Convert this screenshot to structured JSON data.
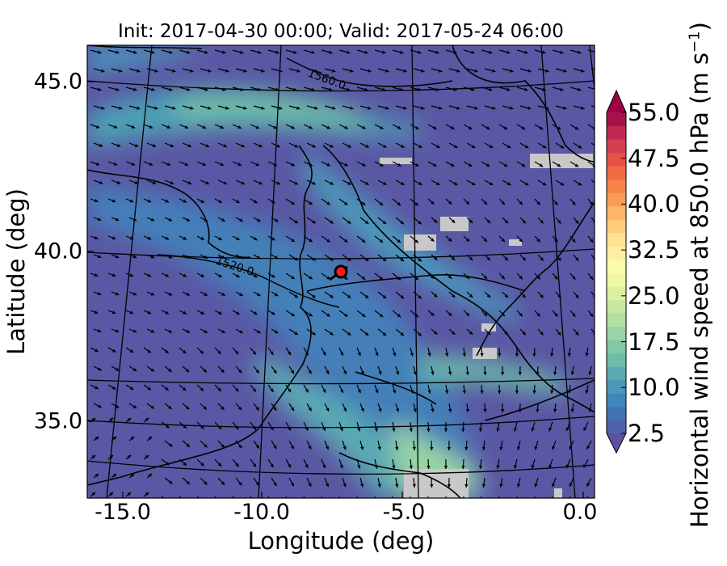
{
  "title": "Init: 2017-04-30 00:00; Valid: 2017-05-24 06:00",
  "map": {
    "x_axis": {
      "label": "Longitude (deg)",
      "ticks": [
        "-15.0",
        "-10.0",
        "-5.0",
        "0.0"
      ],
      "tick_values": [
        -15,
        -10,
        -5,
        0
      ],
      "range": [
        -16.1,
        0.2
      ]
    },
    "y_axis": {
      "label": "Latitude (deg)",
      "ticks": [
        "35.0",
        "40.0",
        "45.0"
      ],
      "tick_values": [
        35,
        40,
        45
      ],
      "range": [
        32.7,
        46.1
      ]
    },
    "contour_labels": [
      "1560.0",
      "1520.0"
    ],
    "marker": {
      "lon": -7.7,
      "lat": 39.4,
      "color": "#ff1a1a"
    },
    "field": "Horizontal wind speed at 850.0 hPa",
    "land_color": "#000000",
    "missing_color": "#c8c8c8"
  },
  "colorbar": {
    "label_main": "Horizontal wind speed at 850.0 hPa (m s",
    "label_exp": "−1",
    "label_close": ")",
    "tick_labels": [
      "2.5",
      "10.0",
      "17.5",
      "25.0",
      "32.5",
      "40.0",
      "47.5",
      "55.0"
    ],
    "tick_values": [
      2.5,
      10.0,
      17.5,
      25.0,
      32.5,
      40.0,
      47.5,
      55.0
    ],
    "range": [
      2.5,
      55.0
    ],
    "extend": "both",
    "colors": [
      "#5e4fa2",
      "#4f61aa",
      "#4173b3",
      "#3f86bc",
      "#4b98bb",
      "#5aaab3",
      "#6bbda9",
      "#81c9a5",
      "#99d4a4",
      "#b2dfa2",
      "#c8e79f",
      "#dcf1a0",
      "#edf8a7",
      "#fbf9ae",
      "#fef0a1",
      "#fee290",
      "#fdcd7b",
      "#fdb567",
      "#fa9c57",
      "#f68249",
      "#ef6a45",
      "#e35346",
      "#d53e4f",
      "#c02950",
      "#a7124e",
      "#9e0142"
    ]
  }
}
